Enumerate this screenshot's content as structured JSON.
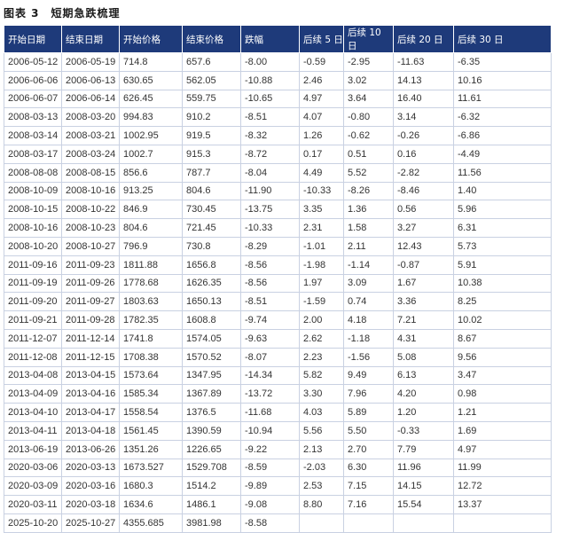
{
  "title": "图表 3　短期急跌梳理",
  "table": {
    "header": [
      "开始日期",
      "结束日期",
      "开始价格",
      "结束价格",
      "跌幅",
      "后续 5 日",
      "后续 10 日",
      "后续 20 日",
      "后续 30 日"
    ],
    "rows": [
      [
        "2006-05-12",
        "2006-05-19",
        "714.8",
        "657.6",
        "-8.00",
        "-0.59",
        "-2.95",
        "-11.63",
        "-6.35"
      ],
      [
        "2006-06-06",
        "2006-06-13",
        "630.65",
        "562.05",
        "-10.88",
        "2.46",
        "3.02",
        "14.13",
        "10.16"
      ],
      [
        "2006-06-07",
        "2006-06-14",
        "626.45",
        "559.75",
        "-10.65",
        "4.97",
        "3.64",
        "16.40",
        "11.61"
      ],
      [
        "2008-03-13",
        "2008-03-20",
        "994.83",
        "910.2",
        "-8.51",
        "4.07",
        "-0.80",
        "3.14",
        "-6.32"
      ],
      [
        "2008-03-14",
        "2008-03-21",
        "1002.95",
        "919.5",
        "-8.32",
        "1.26",
        "-0.62",
        "-0.26",
        "-6.86"
      ],
      [
        "2008-03-17",
        "2008-03-24",
        "1002.7",
        "915.3",
        "-8.72",
        "0.17",
        "0.51",
        "0.16",
        "-4.49"
      ],
      [
        "2008-08-08",
        "2008-08-15",
        "856.6",
        "787.7",
        "-8.04",
        "4.49",
        "5.52",
        "-2.82",
        "11.56"
      ],
      [
        "2008-10-09",
        "2008-10-16",
        "913.25",
        "804.6",
        "-11.90",
        "-10.33",
        "-8.26",
        "-8.46",
        "1.40"
      ],
      [
        "2008-10-15",
        "2008-10-22",
        "846.9",
        "730.45",
        "-13.75",
        "3.35",
        "1.36",
        "0.56",
        "5.96"
      ],
      [
        "2008-10-16",
        "2008-10-23",
        "804.6",
        "721.45",
        "-10.33",
        "2.31",
        "1.58",
        "3.27",
        "6.31"
      ],
      [
        "2008-10-20",
        "2008-10-27",
        "796.9",
        "730.8",
        "-8.29",
        "-1.01",
        "2.11",
        "12.43",
        "5.73"
      ],
      [
        "2011-09-16",
        "2011-09-23",
        "1811.88",
        "1656.8",
        "-8.56",
        "-1.98",
        "-1.14",
        "-0.87",
        "5.91"
      ],
      [
        "2011-09-19",
        "2011-09-26",
        "1778.68",
        "1626.35",
        "-8.56",
        "1.97",
        "3.09",
        "1.67",
        "10.38"
      ],
      [
        "2011-09-20",
        "2011-09-27",
        "1803.63",
        "1650.13",
        "-8.51",
        "-1.59",
        "0.74",
        "3.36",
        "8.25"
      ],
      [
        "2011-09-21",
        "2011-09-28",
        "1782.35",
        "1608.8",
        "-9.74",
        "2.00",
        "4.18",
        "7.21",
        "10.02"
      ],
      [
        "2011-12-07",
        "2011-12-14",
        "1741.8",
        "1574.05",
        "-9.63",
        "2.62",
        "-1.18",
        "4.31",
        "8.67"
      ],
      [
        "2011-12-08",
        "2011-12-15",
        "1708.38",
        "1570.52",
        "-8.07",
        "2.23",
        "-1.56",
        "5.08",
        "9.56"
      ],
      [
        "2013-04-08",
        "2013-04-15",
        "1573.64",
        "1347.95",
        "-14.34",
        "5.82",
        "9.49",
        "6.13",
        "3.47"
      ],
      [
        "2013-04-09",
        "2013-04-16",
        "1585.34",
        "1367.89",
        "-13.72",
        "3.30",
        "7.96",
        "4.20",
        "0.98"
      ],
      [
        "2013-04-10",
        "2013-04-17",
        "1558.54",
        "1376.5",
        "-11.68",
        "4.03",
        "5.89",
        "1.20",
        "1.21"
      ],
      [
        "2013-04-11",
        "2013-04-18",
        "1561.45",
        "1390.59",
        "-10.94",
        "5.56",
        "5.50",
        "-0.33",
        "1.69"
      ],
      [
        "2013-06-19",
        "2013-06-26",
        "1351.26",
        "1226.65",
        "-9.22",
        "2.13",
        "2.70",
        "7.79",
        "4.97"
      ],
      [
        "2020-03-06",
        "2020-03-13",
        "1673.527",
        "1529.708",
        "-8.59",
        "-2.03",
        "6.30",
        "11.96",
        "11.99"
      ],
      [
        "2020-03-09",
        "2020-03-16",
        "1680.3",
        "1514.2",
        "-9.89",
        "2.53",
        "7.15",
        "14.15",
        "12.72"
      ],
      [
        "2020-03-11",
        "2020-03-18",
        "1634.6",
        "1486.1",
        "-9.08",
        "8.80",
        "7.16",
        "15.54",
        "13.37"
      ],
      [
        "2025-10-20",
        "2025-10-27",
        "4355.685",
        "3981.98",
        "-8.58"
      ]
    ]
  }
}
